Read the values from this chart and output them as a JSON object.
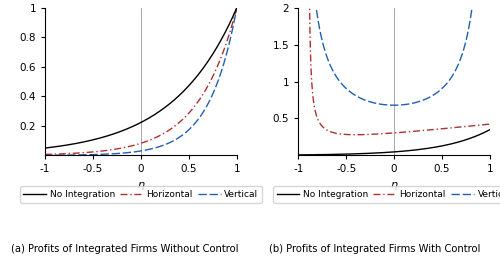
{
  "xlim": [
    -1,
    1
  ],
  "ylim_a": [
    0,
    1
  ],
  "ylim_b": [
    0,
    2
  ],
  "yticks_a": [
    0.2,
    0.4,
    0.6,
    0.8,
    1.0
  ],
  "yticks_b": [
    0.5,
    1.0,
    1.5,
    2.0
  ],
  "xticks": [
    -1,
    -0.5,
    0,
    0.5,
    1
  ],
  "xlabel": "η",
  "color_no_int": "#000000",
  "color_horiz": "#b03030",
  "color_vert": "#2060b0",
  "title_a": "(a) Profits of Integrated Firms Without Control",
  "title_b": "(b) Profits of Integrated Firms With Control",
  "legend_labels": [
    "No Integration",
    "Horizontal",
    "Vertical"
  ],
  "figsize": [
    5.0,
    2.59
  ],
  "dpi": 100,
  "no_int_a_exp": 1.5,
  "horiz_a_exp": 2.5,
  "vert_a_exp": 3.5,
  "no_int_b_scale": 0.18,
  "no_int_b_exp": 3.0,
  "vert_b_scale": 0.68,
  "horiz_b_A": 0.09,
  "horiz_b_pole": 0.92
}
